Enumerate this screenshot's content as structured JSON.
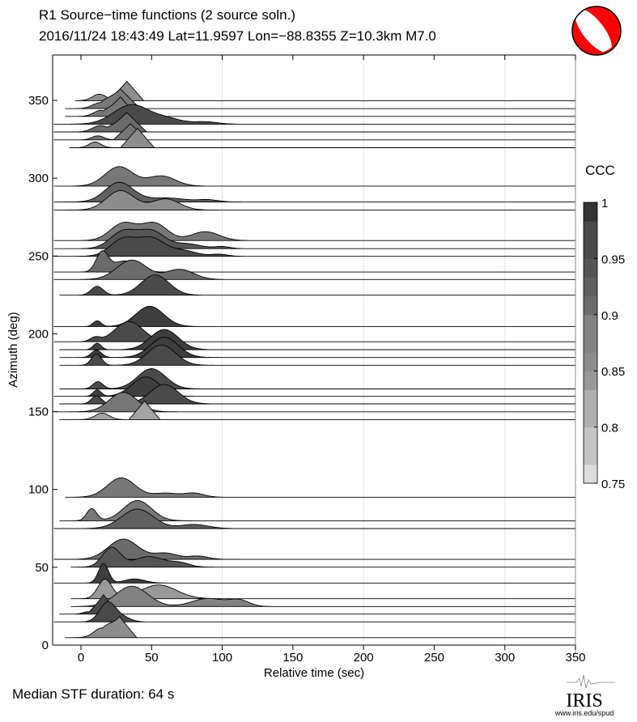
{
  "chart_data": {
    "type": "area",
    "title": "R1 Source−time functions (2 source soln.)",
    "subtitle": "2016/11/24 18:43:49  Lat=11.9597 Lon=−88.8355  Z=10.3km  M7.0",
    "xlabel": "Relative time (sec)",
    "ylabel": "Azimuth (deg)",
    "xlim": [
      -20,
      350
    ],
    "ylim": [
      0,
      380
    ],
    "xticks": [
      "0",
      "50",
      "100",
      "150",
      "200",
      "250",
      "300",
      "350"
    ],
    "yticks": [
      "0",
      "50",
      "100",
      "150",
      "200",
      "250",
      "300",
      "350"
    ],
    "grid_x": [
      100,
      200,
      300
    ],
    "colorbar": {
      "label": "CCC",
      "range": [
        0.75,
        1.0
      ],
      "ticks": [
        "1",
        "0.95",
        "0.9",
        "0.85",
        "0.8",
        "0.75"
      ],
      "gray_low": "#dcdcdc",
      "gray_high": "#333333"
    },
    "amplitude_note": "pulses: [center_sec, relative_amplitude, halfwidth_sec, shape]",
    "traces": [
      {
        "az": 349.8,
        "start": -4,
        "ccc": 0.86,
        "pulses": [
          [
            13,
            0.32,
            7,
            "g"
          ],
          [
            32.5,
            0.96,
            12,
            "t"
          ]
        ]
      },
      {
        "az": 344.7,
        "start": -11,
        "ccc": 0.9,
        "pulses": [
          [
            14,
            0.3,
            8,
            "g"
          ],
          [
            28,
            0.96,
            14,
            "t"
          ]
        ]
      },
      {
        "az": 339.7,
        "start": -11,
        "ccc": 0.9,
        "pulses": [
          [
            14,
            0.3,
            7,
            "g"
          ],
          [
            28,
            0.96,
            12,
            "t"
          ]
        ]
      },
      {
        "az": 334.7,
        "start": -19,
        "ccc": 0.97,
        "pulses": [
          [
            36,
            0.96,
            18,
            "g"
          ],
          [
            62,
            0.24,
            14,
            "g"
          ],
          [
            88,
            0.12,
            12,
            "g"
          ]
        ]
      },
      {
        "az": 329.7,
        "start": -19,
        "ccc": 0.92,
        "pulses": [
          [
            14,
            0.32,
            8,
            "g"
          ],
          [
            32.5,
            0.96,
            14,
            "t"
          ]
        ]
      },
      {
        "az": 324.6,
        "start": -19,
        "ccc": 0.9,
        "pulses": [
          [
            12,
            0.2,
            6,
            "g"
          ],
          [
            35,
            0.8,
            12,
            "t"
          ]
        ]
      },
      {
        "az": 319.6,
        "start": -8,
        "ccc": 0.87,
        "pulses": [
          [
            10,
            0.28,
            6,
            "g"
          ],
          [
            40,
            0.96,
            12,
            "t"
          ]
        ]
      },
      {
        "az": 294.9,
        "start": -19,
        "ccc": 0.9,
        "pulses": [
          [
            27,
            0.96,
            14,
            "g"
          ],
          [
            57,
            0.5,
            14,
            "g"
          ]
        ]
      },
      {
        "az": 284.7,
        "start": -19,
        "ccc": 0.94,
        "pulses": [
          [
            27,
            0.96,
            14,
            "g"
          ],
          [
            60,
            0.2,
            20,
            "g"
          ],
          [
            90,
            0.1,
            10,
            "g"
          ]
        ]
      },
      {
        "az": 279.5,
        "start": -19,
        "ccc": 0.86,
        "pulses": [
          [
            28,
            0.96,
            14,
            "g"
          ],
          [
            60,
            0.55,
            14,
            "g"
          ]
        ]
      },
      {
        "az": 259.9,
        "start": -19,
        "ccc": 0.9,
        "pulses": [
          [
            30,
            0.85,
            13,
            "g"
          ],
          [
            52,
            0.85,
            13,
            "g"
          ],
          [
            88,
            0.44,
            14,
            "g"
          ]
        ]
      },
      {
        "az": 254.7,
        "start": -19,
        "ccc": 0.95,
        "pulses": [
          [
            30,
            0.85,
            13,
            "g"
          ],
          [
            50,
            0.85,
            13,
            "g"
          ],
          [
            75,
            0.24,
            14,
            "g"
          ],
          [
            100,
            0.1,
            8,
            "g"
          ]
        ]
      },
      {
        "az": 249.8,
        "start": -19,
        "ccc": 0.96,
        "pulses": [
          [
            30,
            0.85,
            13,
            "g"
          ],
          [
            50,
            0.85,
            13,
            "g"
          ],
          [
            72,
            0.28,
            14,
            "g"
          ],
          [
            98,
            0.1,
            8,
            "g"
          ]
        ]
      },
      {
        "az": 239.7,
        "start": -19,
        "ccc": 0.92,
        "pulses": [
          [
            15,
            0.96,
            6,
            "g"
          ],
          [
            31,
            0.55,
            12,
            "g"
          ]
        ]
      },
      {
        "az": 234.9,
        "start": -19,
        "ccc": 0.92,
        "pulses": [
          [
            36,
            0.96,
            15,
            "g"
          ],
          [
            70,
            0.5,
            14,
            "g"
          ]
        ]
      },
      {
        "az": 224.8,
        "start": -15,
        "ccc": 0.97,
        "pulses": [
          [
            11.5,
            0.44,
            6,
            "g"
          ],
          [
            52.5,
            1.0,
            14,
            "g"
          ]
        ]
      },
      {
        "az": 204.7,
        "start": -19,
        "ccc": 0.98,
        "pulses": [
          [
            11.5,
            0.28,
            4,
            "g"
          ],
          [
            48.7,
            1.0,
            14,
            "g"
          ]
        ]
      },
      {
        "az": 194.9,
        "start": -19,
        "ccc": 0.97,
        "pulses": [
          [
            10,
            0.2,
            5,
            "g"
          ],
          [
            34,
            1.0,
            14,
            "g"
          ]
        ]
      },
      {
        "az": 189.8,
        "start": -15,
        "ccc": 0.98,
        "pulses": [
          [
            11.5,
            0.32,
            4,
            "g"
          ],
          [
            59,
            1.0,
            14,
            "g"
          ]
        ]
      },
      {
        "az": 184.8,
        "start": -15,
        "ccc": 0.99,
        "pulses": [
          [
            11,
            0.36,
            5,
            "g"
          ],
          [
            59,
            1.0,
            14,
            "g"
          ]
        ]
      },
      {
        "az": 179.8,
        "start": -15,
        "ccc": 0.97,
        "pulses": [
          [
            11,
            0.56,
            5,
            "g"
          ],
          [
            57,
            1.0,
            14,
            "g"
          ]
        ]
      },
      {
        "az": 164.6,
        "start": -15,
        "ccc": 0.97,
        "pulses": [
          [
            12,
            0.36,
            5,
            "g"
          ],
          [
            50,
            1.0,
            14,
            "g"
          ]
        ]
      },
      {
        "az": 159.8,
        "start": -19,
        "ccc": 0.98,
        "pulses": [
          [
            11.5,
            0.32,
            4,
            "g"
          ],
          [
            46,
            0.96,
            14,
            "g"
          ]
        ]
      },
      {
        "az": 155.0,
        "start": -15,
        "ccc": 0.97,
        "pulses": [
          [
            11,
            0.4,
            5,
            "g"
          ],
          [
            59,
            0.96,
            14,
            "g"
          ]
        ]
      },
      {
        "az": 149.9,
        "start": -19,
        "ccc": 0.9,
        "pulses": [
          [
            30,
            0.96,
            14,
            "g"
          ]
        ]
      },
      {
        "az": 144.9,
        "start": -15,
        "ccc": 0.84,
        "pulses": [
          [
            15,
            0.32,
            7,
            "g"
          ],
          [
            45,
            0.92,
            11,
            "t"
          ]
        ]
      },
      {
        "az": 95.0,
        "start": -11,
        "ccc": 0.9,
        "pulses": [
          [
            28.6,
            0.96,
            14,
            "g"
          ],
          [
            60,
            0.2,
            12,
            "g"
          ],
          [
            80,
            0.2,
            10,
            "g"
          ]
        ]
      },
      {
        "az": 79.9,
        "start": -15,
        "ccc": 0.9,
        "pulses": [
          [
            7.6,
            0.6,
            5,
            "g"
          ],
          [
            40,
            1.0,
            14,
            "g"
          ]
        ]
      },
      {
        "az": 74.9,
        "start": -19,
        "ccc": 0.93,
        "pulses": [
          [
            40,
            0.96,
            16,
            "g"
          ],
          [
            80,
            0.2,
            14,
            "g"
          ]
        ]
      },
      {
        "az": 55.1,
        "start": -19,
        "ccc": 0.92,
        "pulses": [
          [
            30,
            1.0,
            15,
            "g"
          ],
          [
            60,
            0.3,
            12,
            "g"
          ],
          [
            83,
            0.16,
            10,
            "g"
          ]
        ]
      },
      {
        "az": 50.1,
        "start": -7,
        "ccc": 0.95,
        "pulses": [
          [
            21.6,
            0.96,
            9,
            "g"
          ],
          [
            48,
            0.52,
            15,
            "g"
          ],
          [
            70,
            0.2,
            10,
            "g"
          ]
        ]
      },
      {
        "az": 39.9,
        "start": -19,
        "ccc": 0.99,
        "pulses": [
          [
            16,
            0.96,
            5,
            "g"
          ],
          [
            38,
            0.2,
            10,
            "g"
          ]
        ]
      },
      {
        "az": 29.8,
        "start": -7,
        "ccc": 0.85,
        "pulses": [
          [
            17,
            0.96,
            7,
            "g"
          ],
          [
            55,
            0.68,
            18,
            "g"
          ]
        ]
      },
      {
        "az": 24.8,
        "start": -7,
        "ccc": 0.88,
        "pulses": [
          [
            36,
            1.0,
            16,
            "g"
          ],
          [
            90,
            0.4,
            16,
            "g"
          ],
          [
            112,
            0.3,
            10,
            "g"
          ]
        ]
      },
      {
        "az": 19.9,
        "start": -15,
        "ccc": 0.96,
        "pulses": [
          [
            5,
            0.12,
            5,
            "g"
          ],
          [
            16,
            0.96,
            10,
            "t"
          ]
        ]
      },
      {
        "az": 14.9,
        "start": -19,
        "ccc": 0.96,
        "pulses": [
          [
            19,
            0.96,
            8,
            "g"
          ],
          [
            30,
            0.2,
            8,
            "g"
          ]
        ]
      },
      {
        "az": 4.8,
        "start": -11,
        "ccc": 0.86,
        "pulses": [
          [
            15,
            0.48,
            8,
            "g"
          ],
          [
            27.5,
            1.0,
            12,
            "t"
          ]
        ]
      }
    ]
  },
  "footer": {
    "median_duration": "Median STF duration: 64 s",
    "logo_text": "IRIS",
    "logo_url_text": "www.iris.edu/spud"
  },
  "colors": {
    "beachball_compression": "#ff0000",
    "beachball_dilatation": "#ffffff"
  }
}
